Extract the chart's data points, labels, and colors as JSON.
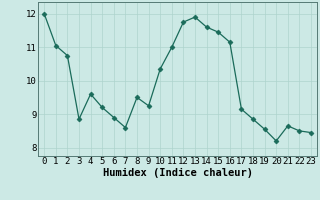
{
  "x": [
    0,
    1,
    2,
    3,
    4,
    5,
    6,
    7,
    8,
    9,
    10,
    11,
    12,
    13,
    14,
    15,
    16,
    17,
    18,
    19,
    20,
    21,
    22,
    23
  ],
  "y": [
    12.0,
    11.05,
    10.75,
    8.85,
    9.6,
    9.2,
    8.9,
    8.6,
    9.5,
    9.25,
    10.35,
    11.0,
    11.75,
    11.9,
    11.6,
    11.45,
    11.15,
    9.15,
    8.85,
    8.55,
    8.2,
    8.65,
    8.5,
    8.45
  ],
  "line_color": "#1a6b5a",
  "marker": "D",
  "marker_size": 2.5,
  "bg_color": "#cce9e5",
  "grid_color": "#aed4ce",
  "xlabel": "Humidex (Indice chaleur)",
  "xlim": [
    -0.5,
    23.5
  ],
  "ylim": [
    7.75,
    12.35
  ],
  "xticks": [
    0,
    1,
    2,
    3,
    4,
    5,
    6,
    7,
    8,
    9,
    10,
    11,
    12,
    13,
    14,
    15,
    16,
    17,
    18,
    19,
    20,
    21,
    22,
    23
  ],
  "yticks": [
    8,
    9,
    10,
    11,
    12
  ],
  "xlabel_fontsize": 7.5,
  "tick_fontsize": 6.5
}
